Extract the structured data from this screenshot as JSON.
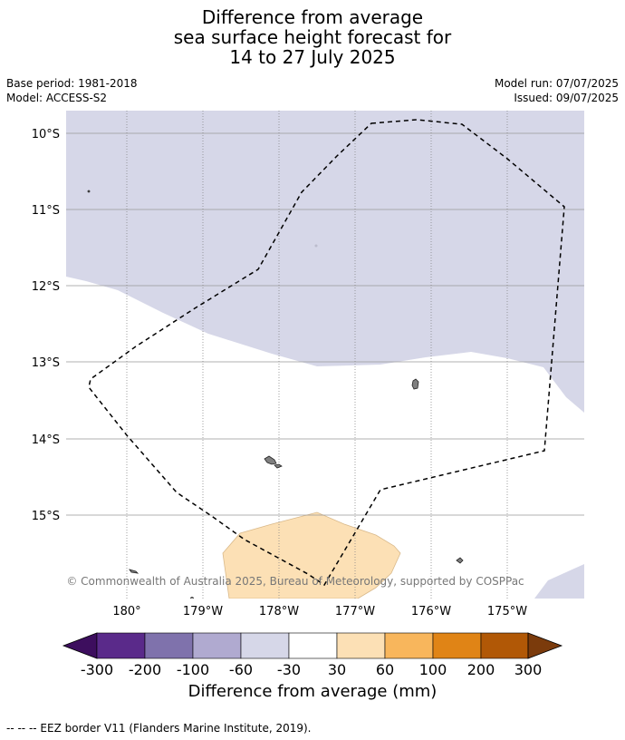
{
  "title_lines": [
    "Difference from average",
    "sea surface height forecast for",
    "14 to 27 July 2025"
  ],
  "meta": {
    "base_period": "Base period: 1981-2018",
    "model": "Model: ACCESS-S2",
    "model_run": "Model run: 07/07/2025",
    "issued": "Issued: 09/07/2025"
  },
  "map": {
    "lat_labels": [
      "10°S",
      "11°S",
      "12°S",
      "13°S",
      "14°S",
      "15°S"
    ],
    "lon_labels": [
      "180°",
      "179°W",
      "178°W",
      "177°W",
      "176°W",
      "175°W"
    ],
    "extent": {
      "lon": [
        -180.8,
        -174.0
      ],
      "lat": [
        -16.1,
        -9.7
      ]
    },
    "lat_values": [
      -10,
      -11,
      -12,
      -13,
      -14,
      -15
    ],
    "lon_values": [
      -180,
      -179,
      -178,
      -177,
      -176,
      -175
    ],
    "copyright": "© Commonwealth of Australia 2025, Bureau of Meteorology, supported by COSPPac",
    "colors": {
      "neg_light": "#d6d7e8",
      "pos_light": "#fce0b5",
      "land": "#808080",
      "grid": "#999999"
    }
  },
  "colorbar": {
    "labels": [
      "-300",
      "-200",
      "-100",
      "-60",
      "-30",
      "30",
      "60",
      "100",
      "200",
      "300"
    ],
    "colors": [
      "#3d0e5e",
      "#5a2a8a",
      "#7f72ac",
      "#b0aad0",
      "#d6d7e8",
      "#ffffff",
      "#fce0b5",
      "#f8b65c",
      "#e08416",
      "#b15806",
      "#7b3b0c"
    ],
    "title": "Difference from average (mm)"
  },
  "footnote": "--  --  -- EEZ border V11 (Flanders Marine Institute, 2019)."
}
